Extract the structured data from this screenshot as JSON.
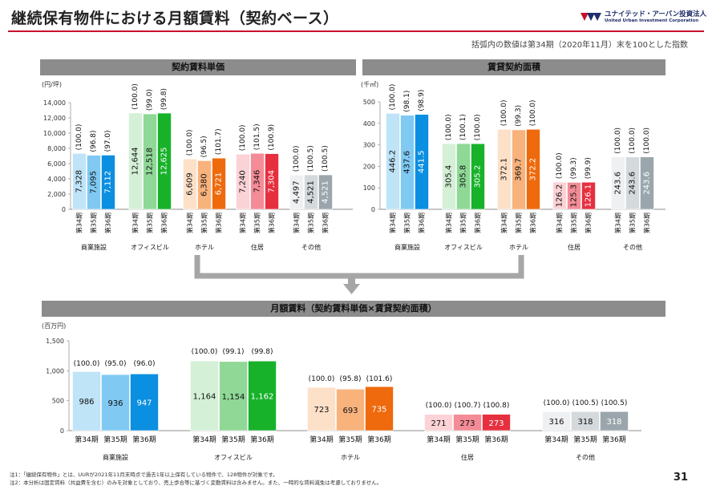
{
  "header": {
    "title": "継続保有物件における月額賃料（契約ベース）",
    "logo_jp": "ユナイテッド・アーバン投資法人",
    "logo_en": "United Urban Investment Corporation",
    "note": "括弧内の数値は第34期（2020年11月）末を100とした指数"
  },
  "footer": {
    "note1": "注1：「継続保有物件」とは、UURが2021年11月末時点で過去1年以上保有している物件で、128物件が対象です。",
    "note2": "注2：本分析は固定賃料（共益費を含む）のみを対象としており、売上歩合等に基づく変動賃料は含みません。また、一時的な賃料減免は考慮しておりません。",
    "page": "31"
  },
  "colors": {
    "commercial": [
      "#bfe3f7",
      "#7fc9f2",
      "#0b8fe0"
    ],
    "office": [
      "#d4f0d7",
      "#8fd896",
      "#17b22a"
    ],
    "hotel": [
      "#fde0c8",
      "#f8b27c",
      "#ee6a0c"
    ],
    "residential": [
      "#fbd2d6",
      "#f38c96",
      "#e6303f"
    ],
    "other": [
      "#eef0f1",
      "#d4d9dc",
      "#9aa6ac"
    ]
  },
  "chart_data": [
    {
      "type": "bar",
      "title": "契約賃料単価",
      "ylabel": "(円/坪)",
      "ylim": [
        0,
        14000
      ],
      "yticks": [
        "0",
        "2,000",
        "4,000",
        "6,000",
        "8,000",
        "10,000",
        "12,000",
        "14,000"
      ],
      "periods": [
        "第34期",
        "第35期",
        "第36期"
      ],
      "groups": [
        {
          "name": "商業施設",
          "values": [
            7328,
            7095,
            7112
          ],
          "labels": [
            "7,328",
            "7,095",
            "7,112"
          ],
          "indices": [
            "(100.0)",
            "(96.8)",
            "(97.0)"
          ]
        },
        {
          "name": "オフィスビル",
          "values": [
            12644,
            12518,
            12625
          ],
          "labels": [
            "12,644",
            "12,518",
            "12,625"
          ],
          "indices": [
            "(100.0)",
            "(99.0)",
            "(99.8)"
          ]
        },
        {
          "name": "ホテル",
          "values": [
            6609,
            6380,
            6721
          ],
          "labels": [
            "6,609",
            "6,380",
            "6,721"
          ],
          "indices": [
            "(100.0)",
            "(96.5)",
            "(101.7)"
          ]
        },
        {
          "name": "住居",
          "values": [
            7240,
            7346,
            7304
          ],
          "labels": [
            "7,240",
            "7,346",
            "7,304"
          ],
          "indices": [
            "(100.0)",
            "(101.5)",
            "(100.9)"
          ]
        },
        {
          "name": "その他",
          "values": [
            4497,
            4521,
            4521
          ],
          "labels": [
            "4,497",
            "4,521",
            "4,521"
          ],
          "indices": [
            "(100.0)",
            "(100.5)",
            "(100.5)"
          ]
        }
      ]
    },
    {
      "type": "bar",
      "title": "賃貸契約面積",
      "ylabel": "(千㎡)",
      "ylim": [
        0,
        500
      ],
      "yticks": [
        "0",
        "100",
        "200",
        "300",
        "400",
        "500"
      ],
      "periods": [
        "第34期",
        "第35期",
        "第36期"
      ],
      "groups": [
        {
          "name": "商業施設",
          "values": [
            446.2,
            437.6,
            441.5
          ],
          "labels": [
            "446.2",
            "437.6",
            "441.5"
          ],
          "indices": [
            "(100.0)",
            "(98.1)",
            "(98.9)"
          ]
        },
        {
          "name": "オフィスビル",
          "values": [
            305.4,
            305.8,
            305.2
          ],
          "labels": [
            "305.4",
            "305.8",
            "305.2"
          ],
          "indices": [
            "(100.0)",
            "(100.1)",
            "(100.0)"
          ]
        },
        {
          "name": "ホテル",
          "values": [
            372.1,
            369.7,
            372.2
          ],
          "labels": [
            "372.1",
            "369.7",
            "372.2"
          ],
          "indices": [
            "(100.0)",
            "(99.3)",
            "(100.0)"
          ]
        },
        {
          "name": "住居",
          "values": [
            126.2,
            125.3,
            126.1
          ],
          "labels": [
            "126.2",
            "125.3",
            "126.1"
          ],
          "indices": [
            "(100.0)",
            "(99.3)",
            "(99.9)"
          ]
        },
        {
          "name": "その他",
          "values": [
            243.6,
            243.6,
            243.6
          ],
          "labels": [
            "243.6",
            "243.6",
            "243.6"
          ],
          "indices": [
            "(100.0)",
            "(100.0)",
            "(100.0)"
          ]
        }
      ]
    },
    {
      "type": "bar",
      "title": "月額賃料（契約賃料単価×賃貸契約面積）",
      "ylabel": "(百万円)",
      "ylim": [
        0,
        1500
      ],
      "yticks": [
        "0",
        "500",
        "1,000",
        "1,500"
      ],
      "periods": [
        "第34期",
        "第35期",
        "第36期"
      ],
      "groups": [
        {
          "name": "商業施設",
          "values": [
            986,
            936,
            947
          ],
          "labels": [
            "986",
            "936",
            "947"
          ],
          "indices": [
            "(100.0)",
            "(95.0)",
            "(96.0)"
          ]
        },
        {
          "name": "オフィスビル",
          "values": [
            1164,
            1154,
            1162
          ],
          "labels": [
            "1,164",
            "1,154",
            "1,162"
          ],
          "indices": [
            "(100.0)",
            "(99.1)",
            "(99.8)"
          ]
        },
        {
          "name": "ホテル",
          "values": [
            723,
            693,
            735
          ],
          "labels": [
            "723",
            "693",
            "735"
          ],
          "indices": [
            "(100.0)",
            "(95.8)",
            "(101.6)"
          ]
        },
        {
          "name": "住居",
          "values": [
            271,
            273,
            273
          ],
          "labels": [
            "271",
            "273",
            "273"
          ],
          "indices": [
            "(100.0)",
            "(100.7)",
            "(100.8)"
          ]
        },
        {
          "name": "その他",
          "values": [
            316,
            318,
            318
          ],
          "labels": [
            "316",
            "318",
            "318"
          ],
          "indices": [
            "(100.0)",
            "(100.5)",
            "(100.5)"
          ]
        }
      ]
    }
  ]
}
